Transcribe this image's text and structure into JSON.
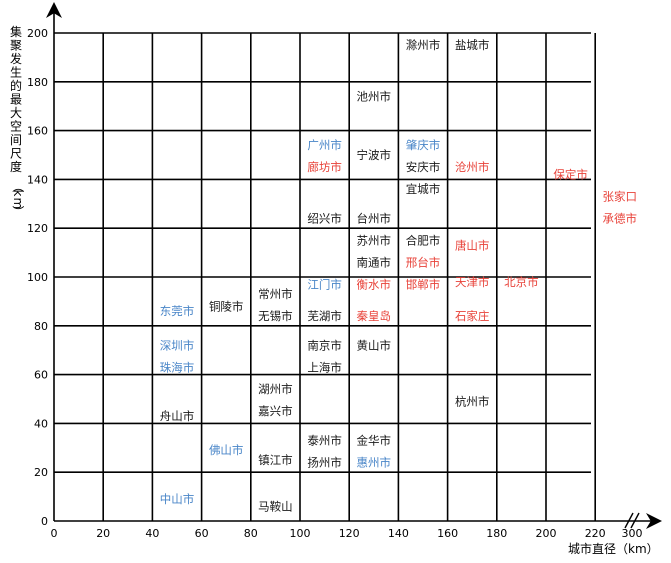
{
  "chart_data": {
    "type": "table",
    "xlabel": "城市直径（km）",
    "ylabel": "集聚发生的最大空间尺度（km）",
    "x_ticks": [
      "0",
      "20",
      "40",
      "60",
      "80",
      "100",
      "120",
      "140",
      "160",
      "180",
      "200",
      "220",
      "300"
    ],
    "y_ticks": [
      "0",
      "20",
      "40",
      "60",
      "80",
      "100",
      "120",
      "140",
      "160",
      "180",
      "200"
    ],
    "grid": true,
    "colors": {
      "black": "#1a1a1a",
      "blue": "#4a86c8",
      "red": "#e8433a"
    },
    "cities": [
      {
        "name": "滁州市",
        "x": 150,
        "y": 195,
        "color": "black"
      },
      {
        "name": "盐城市",
        "x": 170,
        "y": 195,
        "color": "black"
      },
      {
        "name": "池州市",
        "x": 130,
        "y": 174,
        "color": "black"
      },
      {
        "name": "广州市",
        "x": 110,
        "y": 154,
        "color": "blue"
      },
      {
        "name": "廊坊市",
        "x": 110,
        "y": 145,
        "color": "red"
      },
      {
        "name": "宁波市",
        "x": 130,
        "y": 150,
        "color": "black"
      },
      {
        "name": "肇庆市",
        "x": 150,
        "y": 154,
        "color": "blue"
      },
      {
        "name": "安庆市",
        "x": 150,
        "y": 145,
        "color": "black"
      },
      {
        "name": "宜城市",
        "x": 150,
        "y": 136,
        "color": "black"
      },
      {
        "name": "沧州市",
        "x": 170,
        "y": 145,
        "color": "red"
      },
      {
        "name": "保定市",
        "x": 210,
        "y": 142,
        "color": "red"
      },
      {
        "name": "张家口",
        "x": 230,
        "y": 133,
        "color": "red"
      },
      {
        "name": "承德市",
        "x": 230,
        "y": 124,
        "color": "red"
      },
      {
        "name": "绍兴市",
        "x": 110,
        "y": 124,
        "color": "black"
      },
      {
        "name": "台州市",
        "x": 130,
        "y": 124,
        "color": "black"
      },
      {
        "name": "苏州市",
        "x": 130,
        "y": 115,
        "color": "black"
      },
      {
        "name": "南通市",
        "x": 130,
        "y": 106,
        "color": "black"
      },
      {
        "name": "衡水市",
        "x": 130,
        "y": 97,
        "color": "red"
      },
      {
        "name": "江门市",
        "x": 110,
        "y": 97,
        "color": "blue"
      },
      {
        "name": "合肥市",
        "x": 150,
        "y": 115,
        "color": "black"
      },
      {
        "name": "邢台市",
        "x": 150,
        "y": 106,
        "color": "red"
      },
      {
        "name": "邯郸市",
        "x": 150,
        "y": 97,
        "color": "red"
      },
      {
        "name": "唐山市",
        "x": 170,
        "y": 113,
        "color": "red"
      },
      {
        "name": "天津市",
        "x": 170,
        "y": 98,
        "color": "red"
      },
      {
        "name": "北京市",
        "x": 190,
        "y": 98,
        "color": "red"
      },
      {
        "name": "东莞市",
        "x": 50,
        "y": 86,
        "color": "blue"
      },
      {
        "name": "铜陵市",
        "x": 70,
        "y": 88,
        "color": "black"
      },
      {
        "name": "常州市",
        "x": 90,
        "y": 93,
        "color": "black"
      },
      {
        "name": "无锡市",
        "x": 90,
        "y": 84,
        "color": "black"
      },
      {
        "name": "芜湖市",
        "x": 110,
        "y": 84,
        "color": "black"
      },
      {
        "name": "秦皇岛",
        "x": 130,
        "y": 84,
        "color": "red"
      },
      {
        "name": "石家庄",
        "x": 170,
        "y": 84,
        "color": "red"
      },
      {
        "name": "深圳市",
        "x": 50,
        "y": 72,
        "color": "blue"
      },
      {
        "name": "珠海市",
        "x": 50,
        "y": 63,
        "color": "blue"
      },
      {
        "name": "南京市",
        "x": 110,
        "y": 72,
        "color": "black"
      },
      {
        "name": "上海市",
        "x": 110,
        "y": 63,
        "color": "black"
      },
      {
        "name": "黄山市",
        "x": 130,
        "y": 72,
        "color": "black"
      },
      {
        "name": "湖州市",
        "x": 90,
        "y": 54,
        "color": "black"
      },
      {
        "name": "嘉兴市",
        "x": 90,
        "y": 45,
        "color": "black"
      },
      {
        "name": "杭州市",
        "x": 170,
        "y": 49,
        "color": "black"
      },
      {
        "name": "舟山市",
        "x": 50,
        "y": 43,
        "color": "black"
      },
      {
        "name": "佛山市",
        "x": 70,
        "y": 29,
        "color": "blue"
      },
      {
        "name": "泰州市",
        "x": 110,
        "y": 33,
        "color": "black"
      },
      {
        "name": "扬州市",
        "x": 110,
        "y": 24,
        "color": "black"
      },
      {
        "name": "金华市",
        "x": 130,
        "y": 33,
        "color": "black"
      },
      {
        "name": "惠州市",
        "x": 130,
        "y": 24,
        "color": "blue"
      },
      {
        "name": "镇江市",
        "x": 90,
        "y": 25,
        "color": "black"
      },
      {
        "name": "中山市",
        "x": 50,
        "y": 9,
        "color": "blue"
      },
      {
        "name": "马鞍山",
        "x": 90,
        "y": 6,
        "color": "black"
      }
    ]
  }
}
